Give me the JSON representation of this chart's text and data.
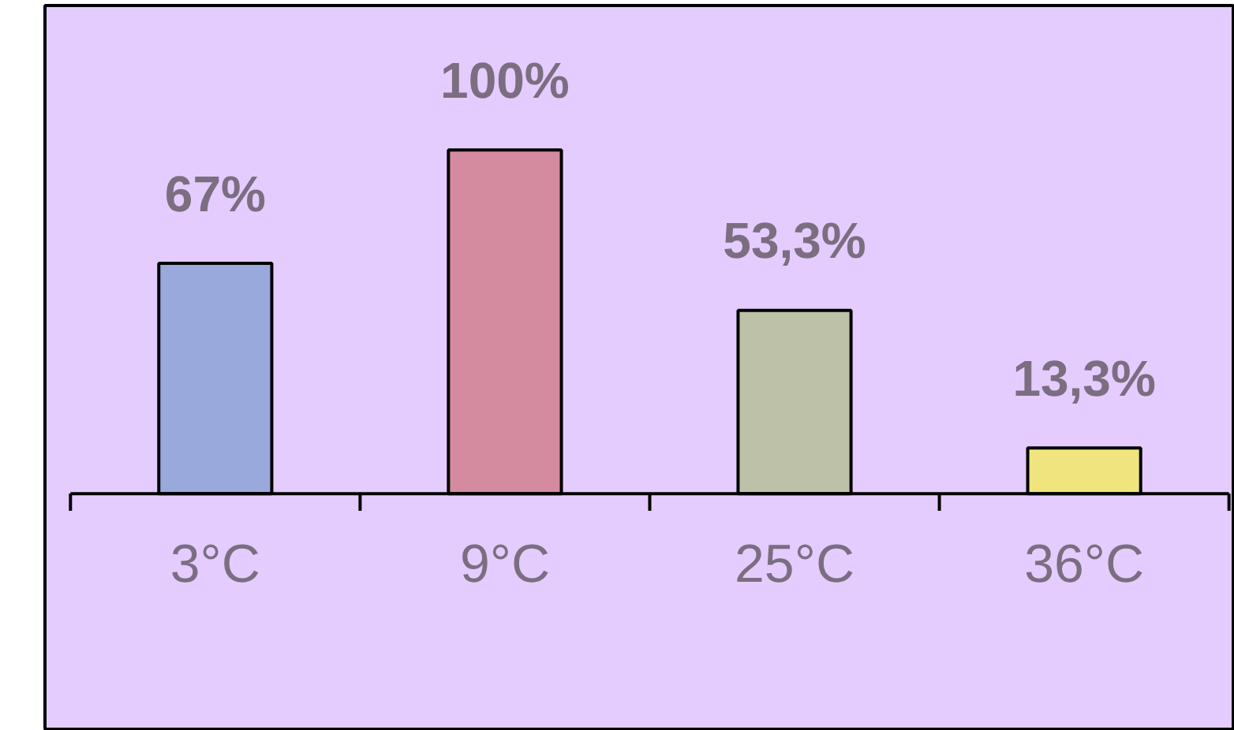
{
  "chart_data": {
    "type": "bar",
    "categories": [
      "3°C",
      "9°C",
      "25°C",
      "36°C"
    ],
    "values": [
      67,
      100,
      53.3,
      13.3
    ],
    "colors": [
      "#9aa9dc",
      "#d48ba0",
      "#bcc1a8",
      "#f0e47e"
    ],
    "value_labels": [
      "67%",
      "100%",
      "53,3%",
      "13,3%"
    ],
    "grid": false
  }
}
